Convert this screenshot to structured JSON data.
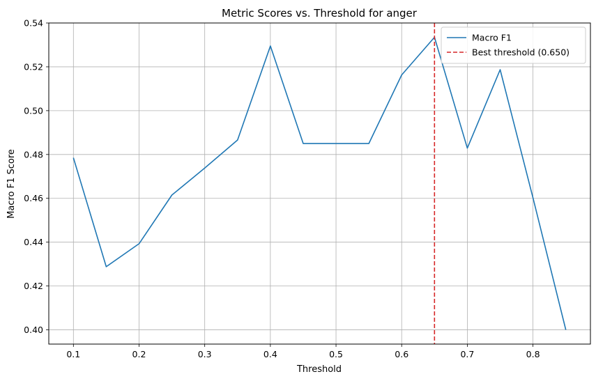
{
  "chart_data": {
    "type": "line",
    "title": "Metric Scores vs. Threshold for anger",
    "xlabel": "Threshold",
    "ylabel": "Macro F1 Score",
    "xlim": [
      0.0625,
      0.8875
    ],
    "ylim": [
      0.3935,
      0.54
    ],
    "xticks": [
      "0.1",
      "0.2",
      "0.3",
      "0.4",
      "0.5",
      "0.6",
      "0.7",
      "0.8"
    ],
    "xtick_values": [
      0.1,
      0.2,
      0.3,
      0.4,
      0.5,
      0.6,
      0.7,
      0.8
    ],
    "yticks": [
      "0.40",
      "0.42",
      "0.44",
      "0.46",
      "0.48",
      "0.50",
      "0.52",
      "0.54"
    ],
    "ytick_values": [
      0.4,
      0.42,
      0.44,
      0.46,
      0.48,
      0.5,
      0.52,
      0.54
    ],
    "grid": true,
    "legend_position": "top-right",
    "series": [
      {
        "name": "Macro F1",
        "color": "#1f77b4",
        "style": "solid",
        "x": [
          0.1,
          0.15,
          0.2,
          0.25,
          0.3,
          0.35,
          0.4,
          0.45,
          0.5,
          0.55,
          0.6,
          0.65,
          0.7,
          0.75,
          0.8,
          0.85
        ],
        "y": [
          0.4785,
          0.4288,
          0.4393,
          0.4615,
          0.4738,
          0.4866,
          0.5295,
          0.485,
          0.485,
          0.485,
          0.5163,
          0.5335,
          0.4829,
          0.5187,
          0.4602,
          0.4
        ]
      }
    ],
    "vlines": [
      {
        "name": "Best threshold (0.650)",
        "x": 0.65,
        "color": "#d62728",
        "style": "dashed"
      }
    ]
  }
}
